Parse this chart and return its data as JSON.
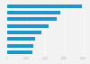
{
  "values": [
    7830,
    5560,
    5180,
    4320,
    3580,
    2950,
    2780,
    2680
  ],
  "bar_color": "#2196c4",
  "background_color": "#f2f2f2",
  "xlim": [
    0,
    8500
  ],
  "figsize": [
    1.0,
    0.71
  ],
  "dpi": 100
}
